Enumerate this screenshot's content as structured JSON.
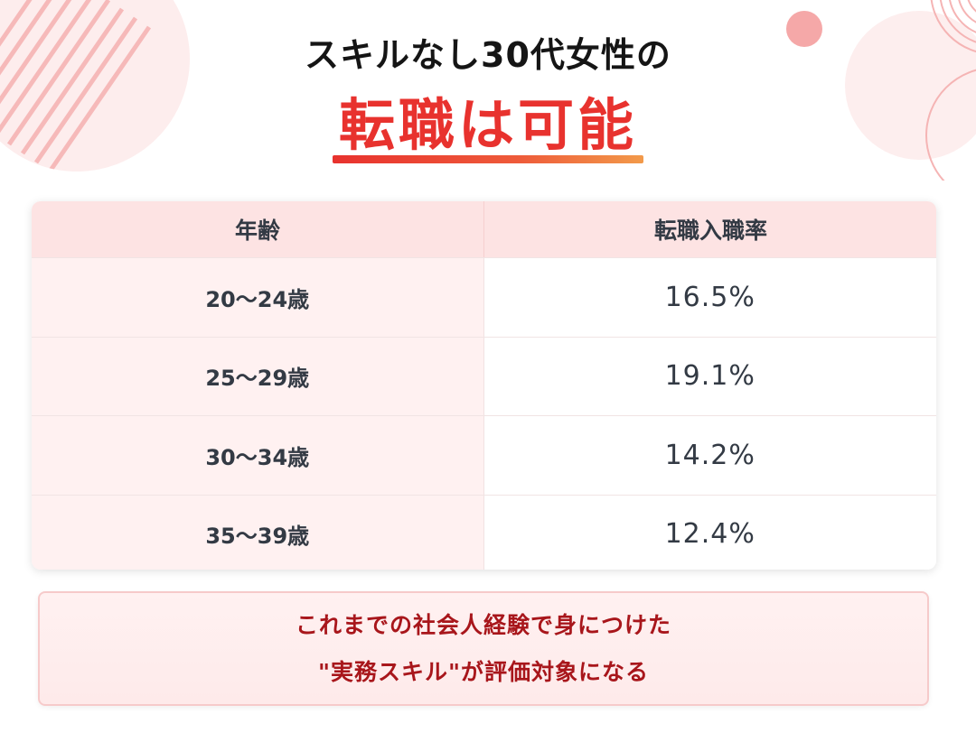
{
  "title": {
    "line1": "スキルなし30代女性の",
    "line2": "転職は可能"
  },
  "table": {
    "headers": [
      "年齢",
      "転職入職率"
    ],
    "rows": [
      {
        "age": "20〜24歳",
        "rate": "16.5%"
      },
      {
        "age": "25〜29歳",
        "rate": "19.1%"
      },
      {
        "age": "30〜34歳",
        "rate": "14.2%"
      },
      {
        "age": "35〜39歳",
        "rate": "12.4%"
      }
    ]
  },
  "note": {
    "line1": "これまでの社会人経験で身につけた",
    "line2": "\"実務スキル\"が評価対象になる"
  },
  "colors": {
    "accent": "#e8322e",
    "header_bg": "#fde3e3",
    "note_text": "#a8161b",
    "text": "#333a44"
  }
}
